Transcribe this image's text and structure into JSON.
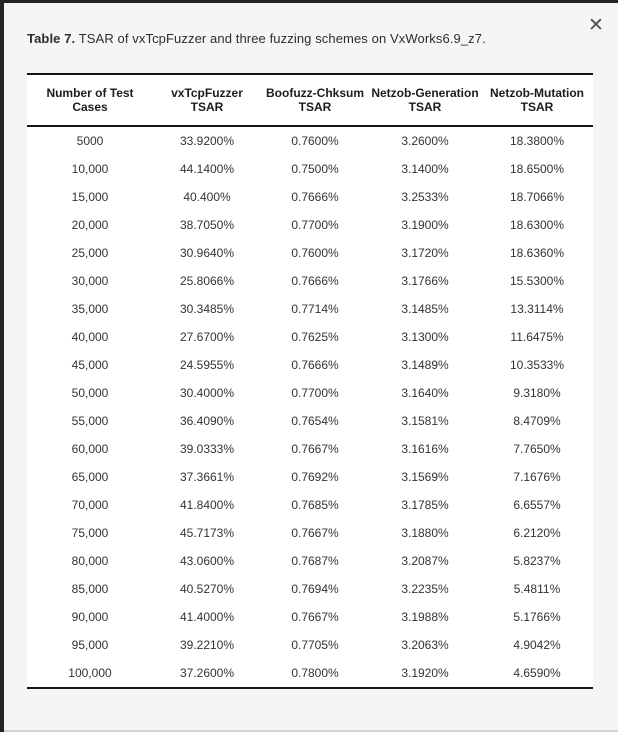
{
  "dialog": {
    "close_icon": "✕"
  },
  "caption": {
    "label": "Table 7.",
    "text": "TSAR of vxTcpFuzzer and three fuzzing schemes on VxWorks6.9_z7."
  },
  "table": {
    "headers": [
      {
        "line1": "Number of Test Cases",
        "line2": ""
      },
      {
        "line1": "vxTcpFuzzer",
        "line2": "TSAR"
      },
      {
        "line1": "Boofuzz-Chksum",
        "line2": "TSAR"
      },
      {
        "line1": "Netzob-Generation",
        "line2": "TSAR"
      },
      {
        "line1": "Netzob-Mutation",
        "line2": "TSAR"
      }
    ],
    "rows": [
      [
        "5000",
        "33.9200%",
        "0.7600%",
        "3.2600%",
        "18.3800%"
      ],
      [
        "10,000",
        "44.1400%",
        "0.7500%",
        "3.1400%",
        "18.6500%"
      ],
      [
        "15,000",
        "40.400%",
        "0.7666%",
        "3.2533%",
        "18.7066%"
      ],
      [
        "20,000",
        "38.7050%",
        "0.7700%",
        "3.1900%",
        "18.6300%"
      ],
      [
        "25,000",
        "30.9640%",
        "0.7600%",
        "3.1720%",
        "18.6360%"
      ],
      [
        "30,000",
        "25.8066%",
        "0.7666%",
        "3.1766%",
        "15.5300%"
      ],
      [
        "35,000",
        "30.3485%",
        "0.7714%",
        "3.1485%",
        "13.3114%"
      ],
      [
        "40,000",
        "27.6700%",
        "0.7625%",
        "3.1300%",
        "11.6475%"
      ],
      [
        "45,000",
        "24.5955%",
        "0.7666%",
        "3.1489%",
        "10.3533%"
      ],
      [
        "50,000",
        "30.4000%",
        "0.7700%",
        "3.1640%",
        "9.3180%"
      ],
      [
        "55,000",
        "36.4090%",
        "0.7654%",
        "3.1581%",
        "8.4709%"
      ],
      [
        "60,000",
        "39.0333%",
        "0.7667%",
        "3.1616%",
        "7.7650%"
      ],
      [
        "65,000",
        "37.3661%",
        "0.7692%",
        "3.1569%",
        "7.1676%"
      ],
      [
        "70,000",
        "41.8400%",
        "0.7685%",
        "3.1785%",
        "6.6557%"
      ],
      [
        "75,000",
        "45.7173%",
        "0.7667%",
        "3.1880%",
        "6.2120%"
      ],
      [
        "80,000",
        "43.0600%",
        "0.7687%",
        "3.2087%",
        "5.8237%"
      ],
      [
        "85,000",
        "40.5270%",
        "0.7694%",
        "3.2235%",
        "5.4811%"
      ],
      [
        "90,000",
        "41.4000%",
        "0.7667%",
        "3.1988%",
        "5.1766%"
      ],
      [
        "95,000",
        "39.2210%",
        "0.7705%",
        "3.2063%",
        "4.9042%"
      ],
      [
        "100,000",
        "37.2600%",
        "0.7800%",
        "3.1920%",
        "4.6590%"
      ]
    ]
  },
  "colors": {
    "backdrop": "#242424",
    "dialog_bg": "#f5f5f6",
    "table_bg": "#ffffff",
    "bottom_strip": "#cfd0d1",
    "rule": "#161616",
    "header_text": "#1c1c1c",
    "body_text": "#333333",
    "caption_text": "#2d2d2d",
    "icon": "#4f4f4f"
  }
}
